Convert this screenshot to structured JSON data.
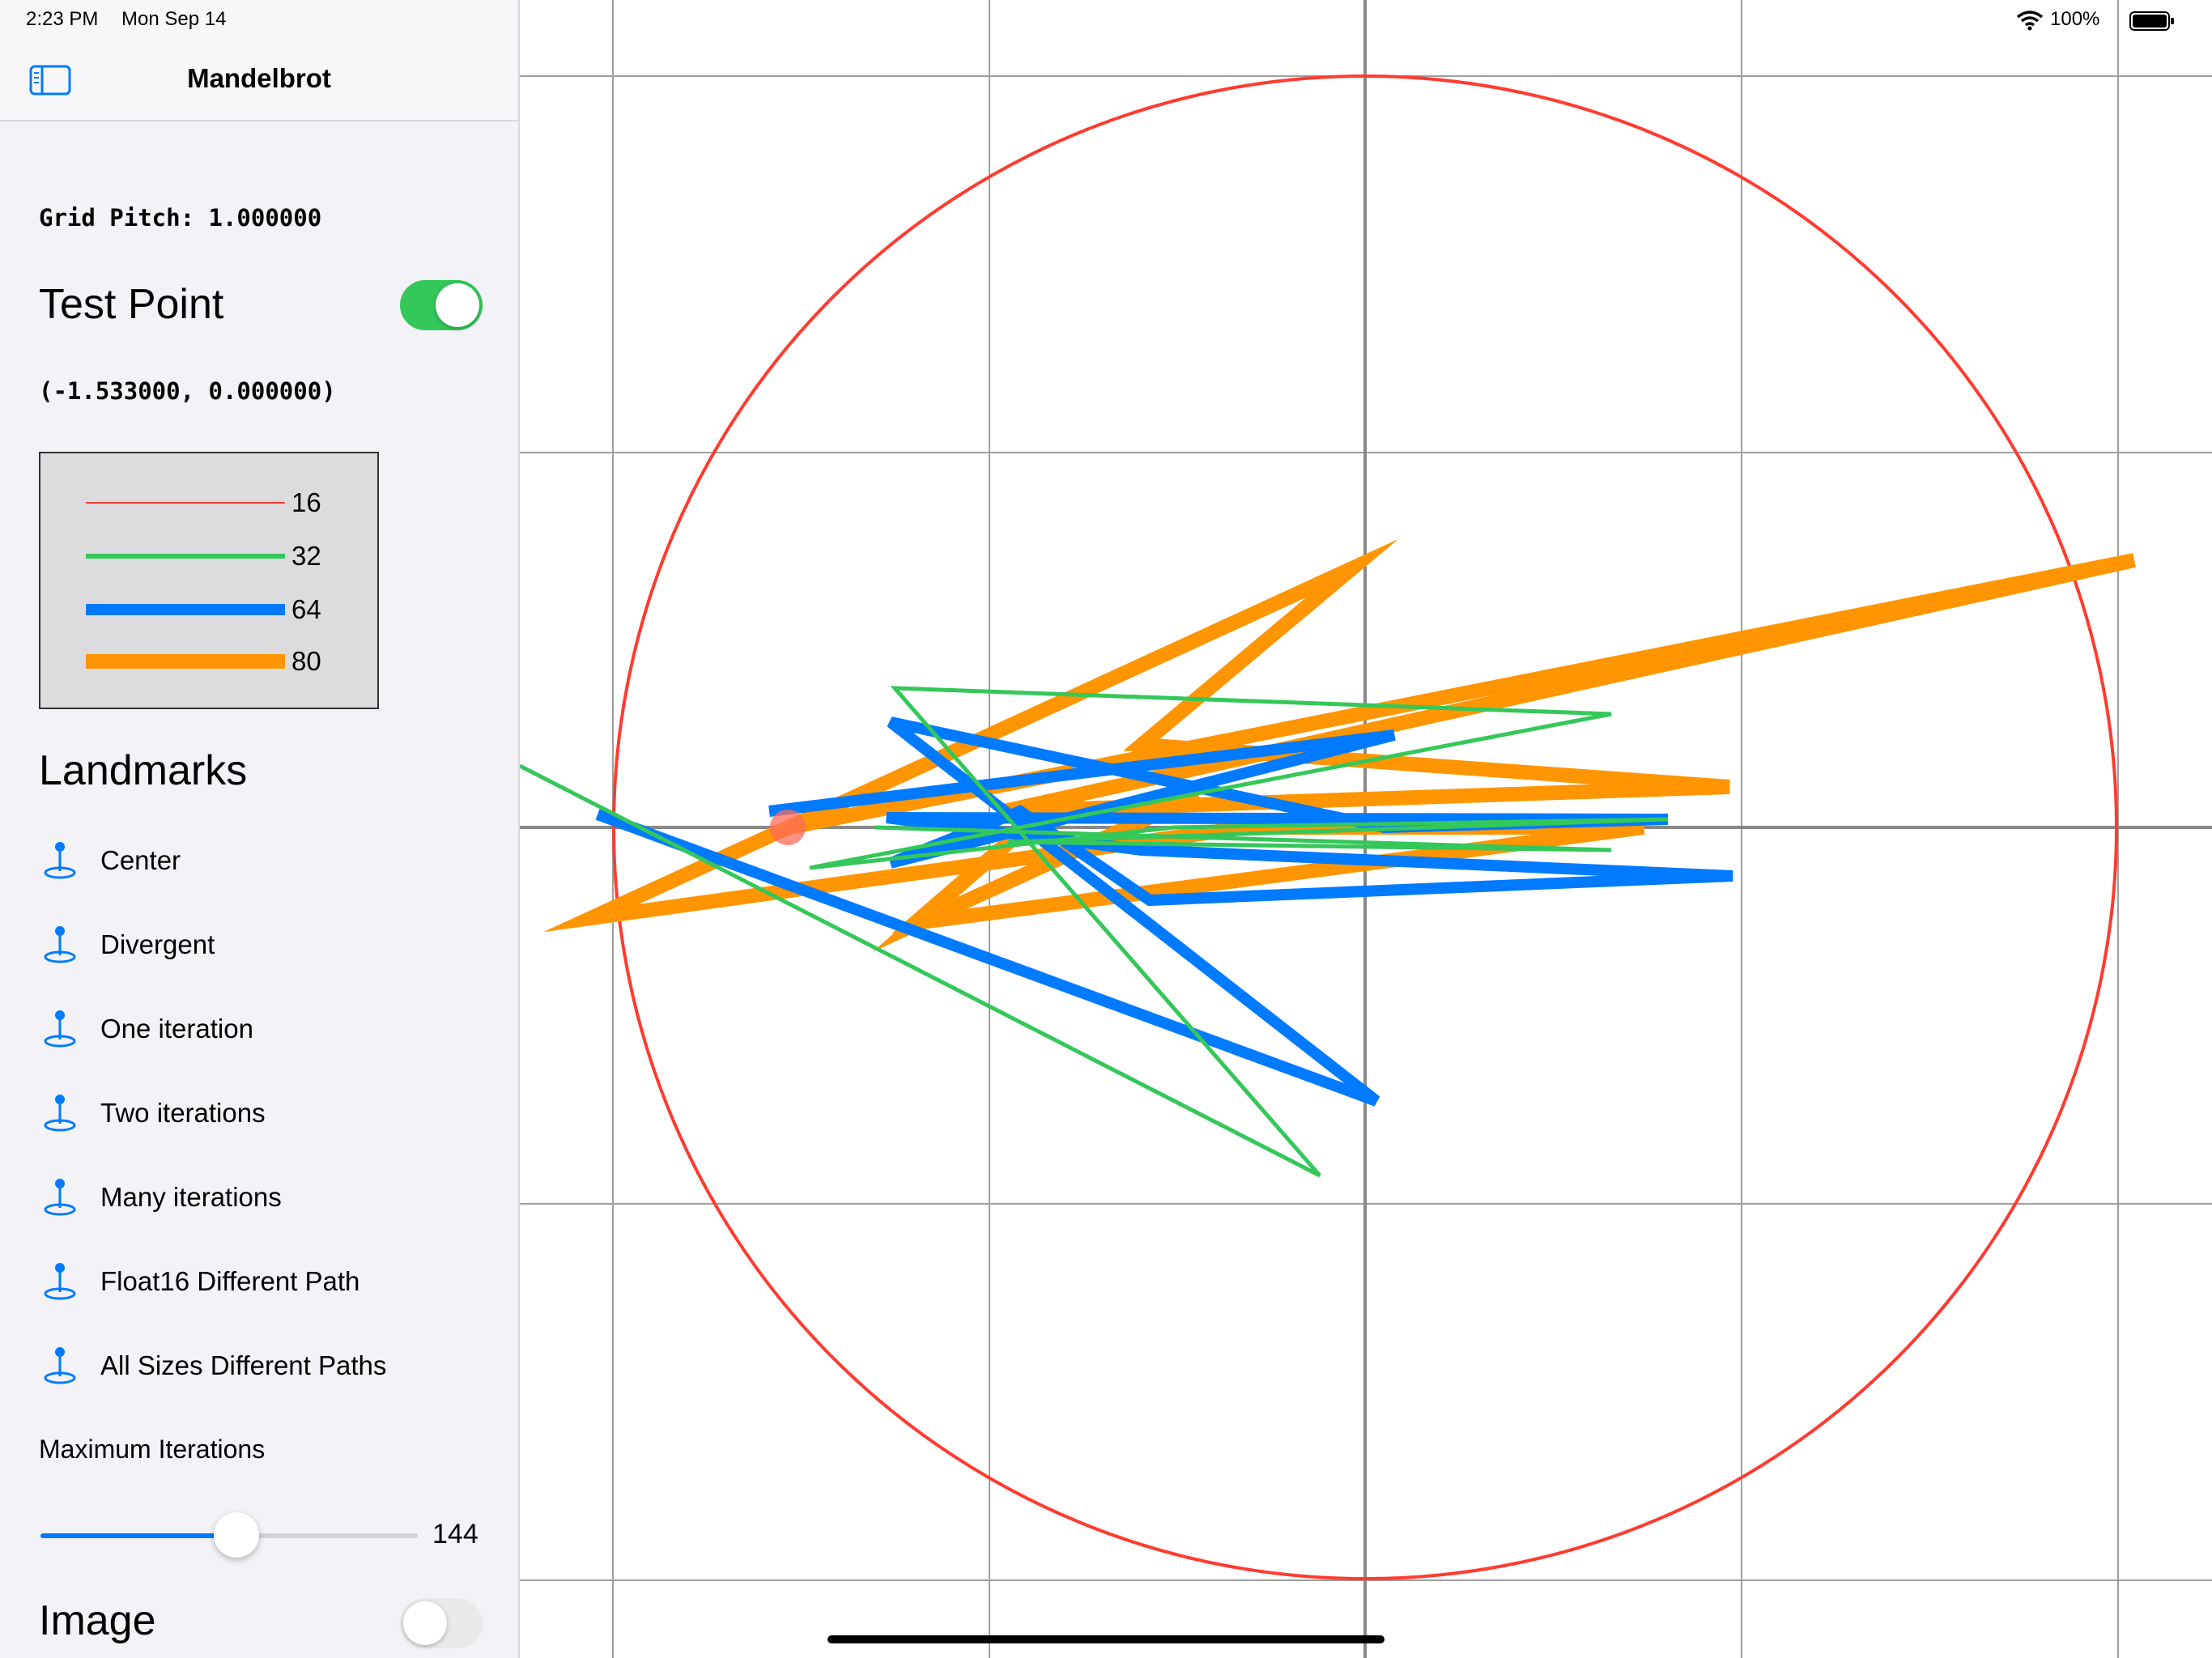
{
  "status_bar": {
    "time": "2:23 PM",
    "date": "Mon Sep 14",
    "battery": "100%"
  },
  "sidebar": {
    "title": "Mandelbrot",
    "grid_pitch": "Grid Pitch: 1.000000",
    "test_point": {
      "label": "Test Point",
      "enabled": true,
      "coords": "(-1.533000, 0.000000)"
    },
    "legend": [
      {
        "label": "16",
        "color": "#ff3b30",
        "width": "thin"
      },
      {
        "label": "32",
        "color": "#34c759",
        "width": "medium"
      },
      {
        "label": "64",
        "color": "#007aff",
        "width": "thick"
      },
      {
        "label": "80",
        "color": "#ff9500",
        "width": "thickest"
      }
    ],
    "landmarks_title": "Landmarks",
    "landmarks": [
      "Center",
      "Divergent",
      "One iteration",
      "Two iterations",
      "Many iterations",
      "Float16 Different Path",
      "All Sizes Different Paths"
    ],
    "max_iterations": {
      "label": "Maximum Iterations",
      "value": "144",
      "fraction": 0.52
    },
    "image": {
      "label": "Image",
      "enabled": false
    }
  },
  "plot": {
    "grid_pitch": 1.0,
    "x_range": [
      -2.0,
      2.0
    ],
    "escape_circle_radius": 2,
    "test_point": [
      -1.533,
      0.0
    ],
    "colors": {
      "circle": "#ff3b30",
      "grid": "#9e9e9e",
      "axis": "#888888",
      "green": "#34c759",
      "blue": "#007aff",
      "orange": "#ff9500",
      "point": "#ff6b5a"
    }
  }
}
